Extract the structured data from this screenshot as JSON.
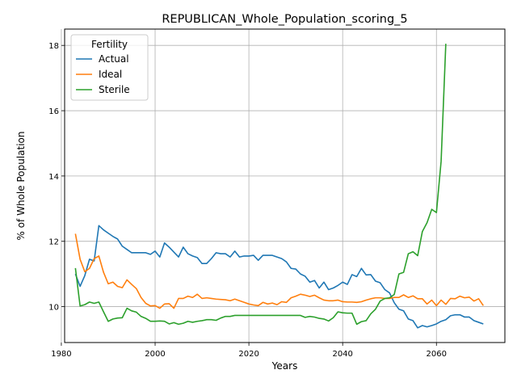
{
  "chart_data": {
    "type": "line",
    "title": "REPUBLICAN_Whole_Population_scoring_5",
    "xlabel": "Years",
    "ylabel": "% of Whole Population",
    "xlim": [
      1980.7,
      2074.6
    ],
    "ylim": [
      8.9,
      18.5
    ],
    "xticks": [
      1980,
      2000,
      2020,
      2040,
      2060
    ],
    "yticks": [
      10,
      12,
      14,
      16,
      18
    ],
    "grid": true,
    "legend": {
      "title": "Fertility",
      "placement": "top-left"
    },
    "x": [
      1983,
      1984,
      1985,
      1986,
      1987,
      1988,
      1989,
      1990,
      1991,
      1992,
      1993,
      1994,
      1995,
      1996,
      1997,
      1998,
      1999,
      2000,
      2001,
      2002,
      2003,
      2004,
      2005,
      2006,
      2007,
      2008,
      2009,
      2010,
      2011,
      2012,
      2013,
      2014,
      2015,
      2016,
      2017,
      2018,
      2019,
      2020,
      2021,
      2022,
      2023,
      2024,
      2025,
      2026,
      2027,
      2028,
      2029,
      2030,
      2031,
      2032,
      2033,
      2034,
      2035,
      2036,
      2037,
      2038,
      2039,
      2040,
      2041,
      2042,
      2043,
      2044,
      2045,
      2046,
      2047,
      2048,
      2049,
      2050,
      2051,
      2052,
      2053,
      2054,
      2055,
      2056,
      2057,
      2058,
      2059,
      2060,
      2061,
      2062,
      2063,
      2064,
      2065,
      2066,
      2067,
      2068,
      2069,
      2070
    ],
    "series": [
      {
        "name": "Actual",
        "color": "#1f77b4",
        "values": [
          11.0,
          10.62,
          10.95,
          11.45,
          11.4,
          12.48,
          12.35,
          12.25,
          12.15,
          12.07,
          11.85,
          11.75,
          11.65,
          11.65,
          11.65,
          11.65,
          11.6,
          11.7,
          11.52,
          11.95,
          11.82,
          11.67,
          11.52,
          11.82,
          11.62,
          11.55,
          11.5,
          11.32,
          11.32,
          11.47,
          11.65,
          11.62,
          11.62,
          11.52,
          11.7,
          11.52,
          11.55,
          11.55,
          11.57,
          11.42,
          11.57,
          11.57,
          11.57,
          11.52,
          11.47,
          11.37,
          11.17,
          11.15,
          11.0,
          10.93,
          10.75,
          10.8,
          10.57,
          10.75,
          10.52,
          10.57,
          10.65,
          10.75,
          10.68,
          10.98,
          10.92,
          11.17,
          10.97,
          10.98,
          10.78,
          10.73,
          10.52,
          10.42,
          10.12,
          9.92,
          9.87,
          9.62,
          9.57,
          9.35,
          9.42,
          9.38,
          9.42,
          9.47,
          9.55,
          9.6,
          9.72,
          9.75,
          9.75,
          9.68,
          9.68,
          9.57,
          9.52,
          9.47
        ]
      },
      {
        "name": "Ideal",
        "color": "#ff7f0e",
        "values": [
          12.23,
          11.45,
          11.07,
          11.17,
          11.47,
          11.55,
          11.05,
          10.7,
          10.75,
          10.62,
          10.58,
          10.82,
          10.68,
          10.55,
          10.28,
          10.1,
          10.02,
          10.03,
          9.95,
          10.08,
          10.09,
          9.95,
          10.25,
          10.25,
          10.32,
          10.28,
          10.38,
          10.25,
          10.27,
          10.25,
          10.23,
          10.22,
          10.21,
          10.18,
          10.23,
          10.18,
          10.13,
          10.08,
          10.05,
          10.03,
          10.13,
          10.08,
          10.11,
          10.06,
          10.15,
          10.13,
          10.27,
          10.32,
          10.38,
          10.35,
          10.31,
          10.35,
          10.27,
          10.2,
          10.18,
          10.18,
          10.2,
          10.15,
          10.14,
          10.14,
          10.13,
          10.15,
          10.2,
          10.24,
          10.27,
          10.27,
          10.25,
          10.25,
          10.28,
          10.28,
          10.36,
          10.28,
          10.33,
          10.24,
          10.24,
          10.08,
          10.2,
          10.03,
          10.2,
          10.07,
          10.25,
          10.24,
          10.32,
          10.27,
          10.29,
          10.17,
          10.24,
          10.03
        ]
      },
      {
        "name": "Sterile",
        "color": "#2ca02c",
        "values": [
          11.18,
          10.02,
          10.06,
          10.14,
          10.1,
          10.14,
          9.84,
          9.55,
          9.62,
          9.65,
          9.66,
          9.95,
          9.87,
          9.83,
          9.7,
          9.64,
          9.55,
          9.55,
          9.56,
          9.55,
          9.47,
          9.51,
          9.46,
          9.49,
          9.55,
          9.52,
          9.55,
          9.57,
          9.6,
          9.6,
          9.58,
          9.65,
          9.7,
          9.7,
          9.73,
          9.73,
          9.73,
          9.73,
          9.73,
          9.73,
          9.73,
          9.73,
          9.73,
          9.73,
          9.73,
          9.73,
          9.73,
          9.73,
          9.73,
          9.67,
          9.7,
          9.68,
          9.64,
          9.62,
          9.56,
          9.66,
          9.84,
          9.81,
          9.8,
          9.8,
          9.46,
          9.54,
          9.57,
          9.78,
          9.92,
          10.17,
          10.25,
          10.27,
          10.37,
          11.0,
          11.05,
          11.62,
          11.68,
          11.56,
          12.3,
          12.57,
          12.98,
          12.88,
          14.45,
          18.05,
          null,
          null,
          null,
          null,
          null,
          null,
          null,
          null
        ]
      }
    ]
  }
}
